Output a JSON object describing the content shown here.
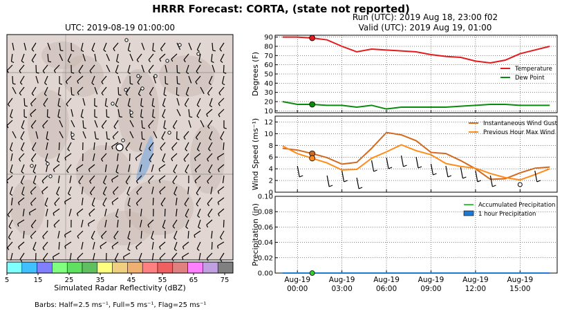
{
  "header": {
    "title": "HRRR Forecast: CORTA, (state not reported)",
    "run": "Run (UTC): 2019 Aug 18, 23:00 f02",
    "valid": "Valid (UTC): 2019 Aug 19, 01:00"
  },
  "map": {
    "title": "UTC: 2019-08-19 01:00:00",
    "colorbar_label": "Simulated Radar Reflectivity (dBZ)",
    "colorbar_ticks": [
      "5",
      "15",
      "25",
      "35",
      "45",
      "55",
      "65",
      "75"
    ],
    "colorbar_colors": [
      "#80ffff",
      "#40c0ff",
      "#8080ff",
      "#80ff80",
      "#60e060",
      "#60c060",
      "#ffff80",
      "#f0d080",
      "#f0b070",
      "#ff8080",
      "#f06060",
      "#e08080",
      "#ff80ff",
      "#c0a0e0",
      "#808080"
    ],
    "barb_note": "Barbs: Half=2.5 ms⁻¹, Full=5 ms⁻¹, Flag=25 ms⁻¹"
  },
  "colors": {
    "temperature": "#e41a1c",
    "dewpoint": "#0a8a0a",
    "gust": "#d2691e",
    "maxwind": "#ff8c1a",
    "accum": "#33cc33",
    "hourly": "#1f78d1"
  },
  "chart_data": [
    {
      "type": "line",
      "ylabel": "Degrees (F)",
      "ylim": [
        8,
        92
      ],
      "yticks": [
        10,
        20,
        30,
        40,
        50,
        60,
        70,
        80,
        90
      ],
      "x_hours": [
        0,
        1,
        2,
        3,
        4,
        5,
        6,
        7,
        8,
        9,
        10,
        11,
        12,
        13,
        14,
        15,
        16,
        17,
        18
      ],
      "series": [
        {
          "name": "Temperature",
          "values": [
            90,
            90,
            89,
            87,
            80,
            74,
            77,
            76,
            75,
            74,
            71,
            69,
            68,
            64,
            62,
            65,
            72,
            76,
            80
          ]
        },
        {
          "name": "Dew Point",
          "values": [
            20,
            17,
            17,
            16,
            16,
            14,
            16,
            12,
            14,
            14,
            14,
            14,
            15,
            16,
            17,
            17,
            16,
            16,
            16
          ]
        }
      ],
      "marker_hour": 2,
      "legend": "right"
    },
    {
      "type": "line",
      "ylabel": "Wind Speed (ms⁻¹)",
      "ylim": [
        0,
        13
      ],
      "yticks": [
        0,
        2,
        4,
        6,
        8,
        10,
        12
      ],
      "x_hours": [
        0,
        1,
        2,
        3,
        4,
        5,
        6,
        7,
        8,
        9,
        10,
        11,
        12,
        13,
        14,
        15,
        16,
        17,
        18
      ],
      "series": [
        {
          "name": "Instantaneous Wind Gust",
          "values": [
            7.5,
            7.2,
            6.6,
            5.9,
            4.8,
            5.1,
            7.5,
            10.2,
            9.8,
            8.8,
            6.8,
            6.6,
            5.4,
            4,
            2.2,
            2.3,
            3.3,
            4.1,
            4.3
          ]
        },
        {
          "name": "Previous Hour Max Wind",
          "values": [
            7.9,
            6.6,
            5.8,
            5,
            3.8,
            3.9,
            5.8,
            6.9,
            8.1,
            7.1,
            6.4,
            4.9,
            4.4,
            4.1,
            3.2,
            2.5,
            2.1,
            3,
            4
          ]
        }
      ],
      "marker_hour": 2,
      "legend": "top-right"
    },
    {
      "type": "line",
      "ylabel": "Precipitation (in)",
      "ylim": [
        0,
        0.1
      ],
      "yticks": [
        "0.00",
        "0.02",
        "0.04",
        "0.06",
        "0.08",
        "0.10"
      ],
      "x_hours": [
        0,
        1,
        2,
        3,
        4,
        5,
        6,
        7,
        8,
        9,
        10,
        11,
        12,
        13,
        14,
        15,
        16,
        17,
        18
      ],
      "series": [
        {
          "name": "Accumulated Precipitation",
          "values": [
            0,
            0,
            0,
            0,
            0,
            0,
            0,
            0,
            0,
            0,
            0,
            0,
            0,
            0,
            0,
            0,
            0,
            0,
            0
          ]
        },
        {
          "name": "1 hour Precipitation",
          "values": [
            0,
            0,
            0,
            0,
            0,
            0,
            0,
            0,
            0,
            0,
            0,
            0,
            0,
            0,
            0,
            0,
            0,
            0,
            0
          ]
        }
      ],
      "marker_hour": 2,
      "xtick_labels": [
        [
          "Aug-19",
          "00:00"
        ],
        [
          "Aug-19",
          "03:00"
        ],
        [
          "Aug-19",
          "06:00"
        ],
        [
          "Aug-19",
          "09:00"
        ],
        [
          "Aug-19",
          "12:00"
        ],
        [
          "Aug-19",
          "15:00"
        ]
      ],
      "xtick_hours": [
        1,
        4,
        7,
        10,
        13,
        16
      ],
      "legend": "top-right"
    }
  ]
}
